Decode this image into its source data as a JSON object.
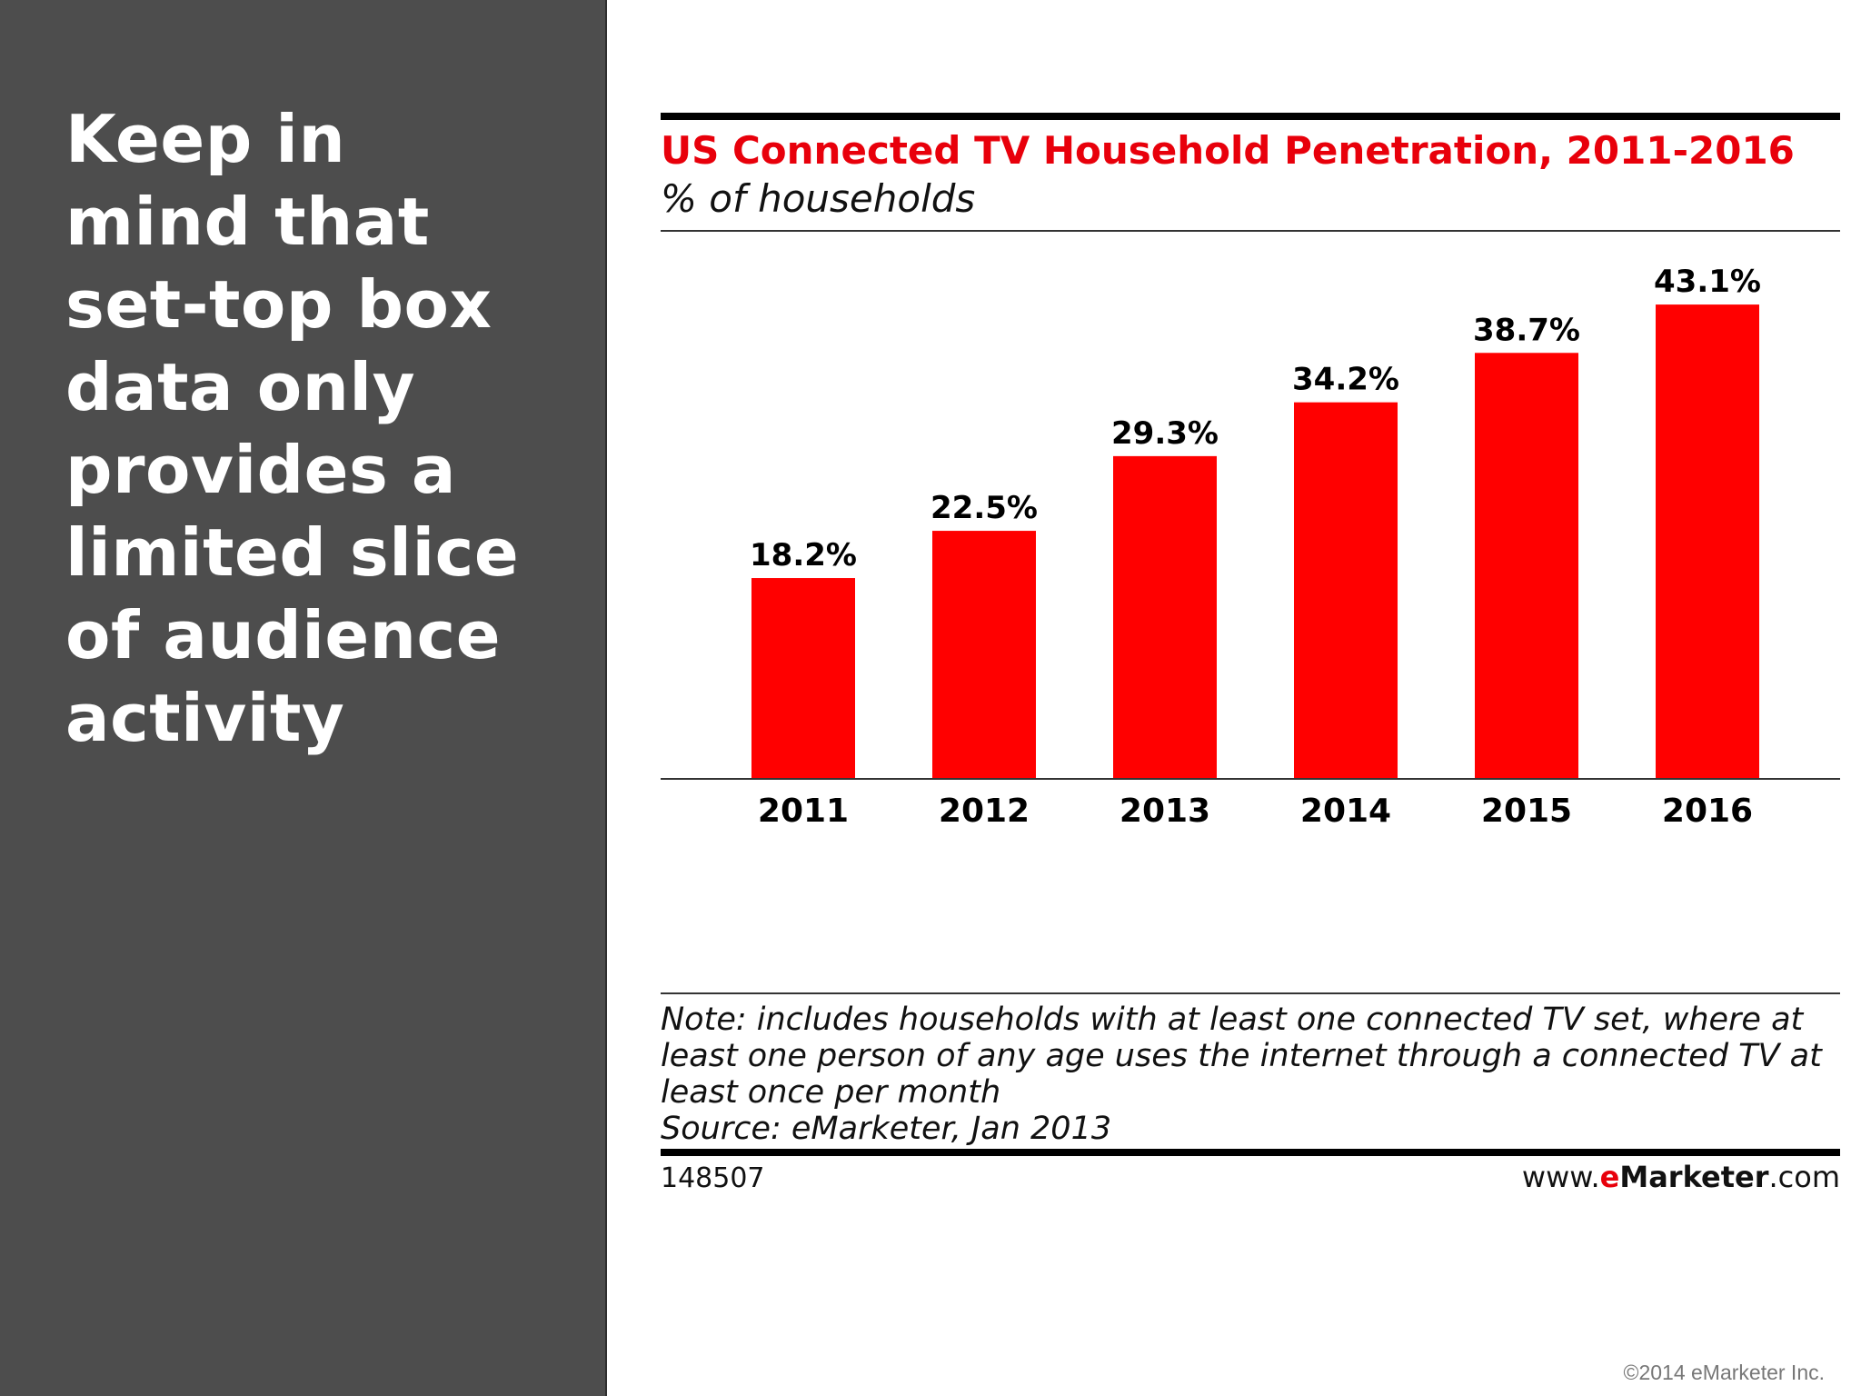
{
  "slide": {
    "headline": "Keep in\nmind that\nset-top box\ndata only\nprovides a\nlimited slice\nof audience\nactivity",
    "copyright": "©2014 eMarketer Inc."
  },
  "chart_data": {
    "type": "bar",
    "title": "US Connected TV Household Penetration, 2011-2016",
    "subtitle": "% of households",
    "categories": [
      "2011",
      "2012",
      "2013",
      "2014",
      "2015",
      "2016"
    ],
    "values": [
      18.2,
      22.5,
      29.3,
      34.2,
      38.7,
      43.1
    ],
    "value_labels": [
      "18.2%",
      "22.5%",
      "29.3%",
      "34.2%",
      "38.7%",
      "43.1%"
    ],
    "ylim": [
      0,
      50
    ],
    "grid": false,
    "bar_color": "#ff0000"
  },
  "footer": {
    "note": "Note: includes households with at least one connected TV set, where at least one person of any age uses the internet through a connected TV at least once per month",
    "source": "Source: eMarketer, Jan 2013",
    "chart_id": "148507",
    "brand_prefix": "www.",
    "brand_e": "e",
    "brand_name": "Marketer",
    "brand_suffix": ".com"
  },
  "colors": {
    "left_panel_bg": "#4d4d4d",
    "title_red": "#e8000b",
    "bar_red": "#ff0000"
  }
}
